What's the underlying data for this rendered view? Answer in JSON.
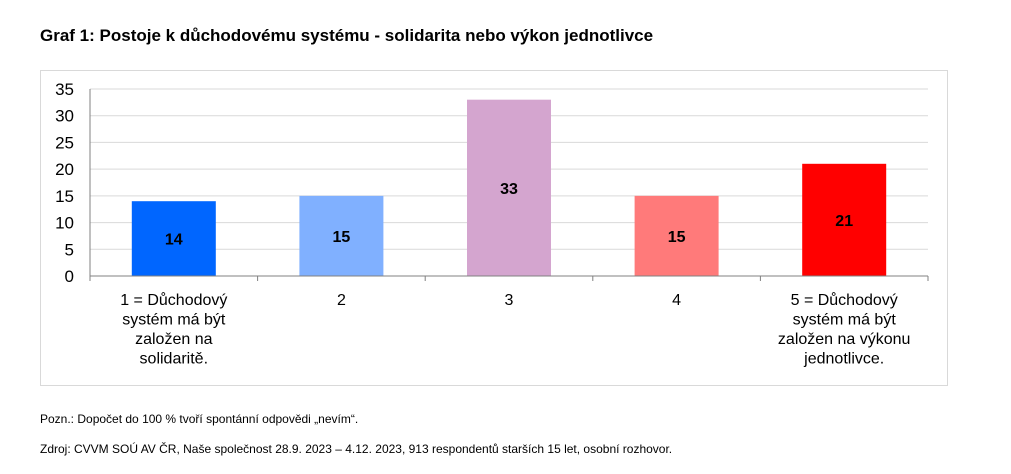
{
  "title": "Graf 1: Postoje k důchodovému systému - solidarita nebo výkon jednotlivce",
  "note": "Pozn.: Dopočet do 100 % tvoří spontánní odpovědi „nevím“.",
  "source": "Zdroj: CVVM SOÚ AV ČR, Naše společnost 28.9. 2023 – 4.12. 2023, 913 respondentů starších 15 let, osobní rozhovor.",
  "chart_data": {
    "type": "bar",
    "categories": [
      [
        "1 = Důchodový",
        "systém má být",
        "založen na",
        "solidaritě."
      ],
      [
        "2"
      ],
      [
        "3"
      ],
      [
        "4"
      ],
      [
        "5 = Důchodový",
        "systém má být",
        "založen na výkonu",
        "jednotlivce."
      ]
    ],
    "values": [
      14,
      15,
      33,
      15,
      21
    ],
    "colors": [
      "#0066ff",
      "#80b0ff",
      "#d4a5cf",
      "#ff7a7a",
      "#ff0000"
    ],
    "ylim": [
      0,
      35
    ],
    "yticks": [
      0,
      5,
      10,
      15,
      20,
      25,
      30,
      35
    ],
    "grid": true,
    "data_labels": true,
    "legend": "none"
  }
}
